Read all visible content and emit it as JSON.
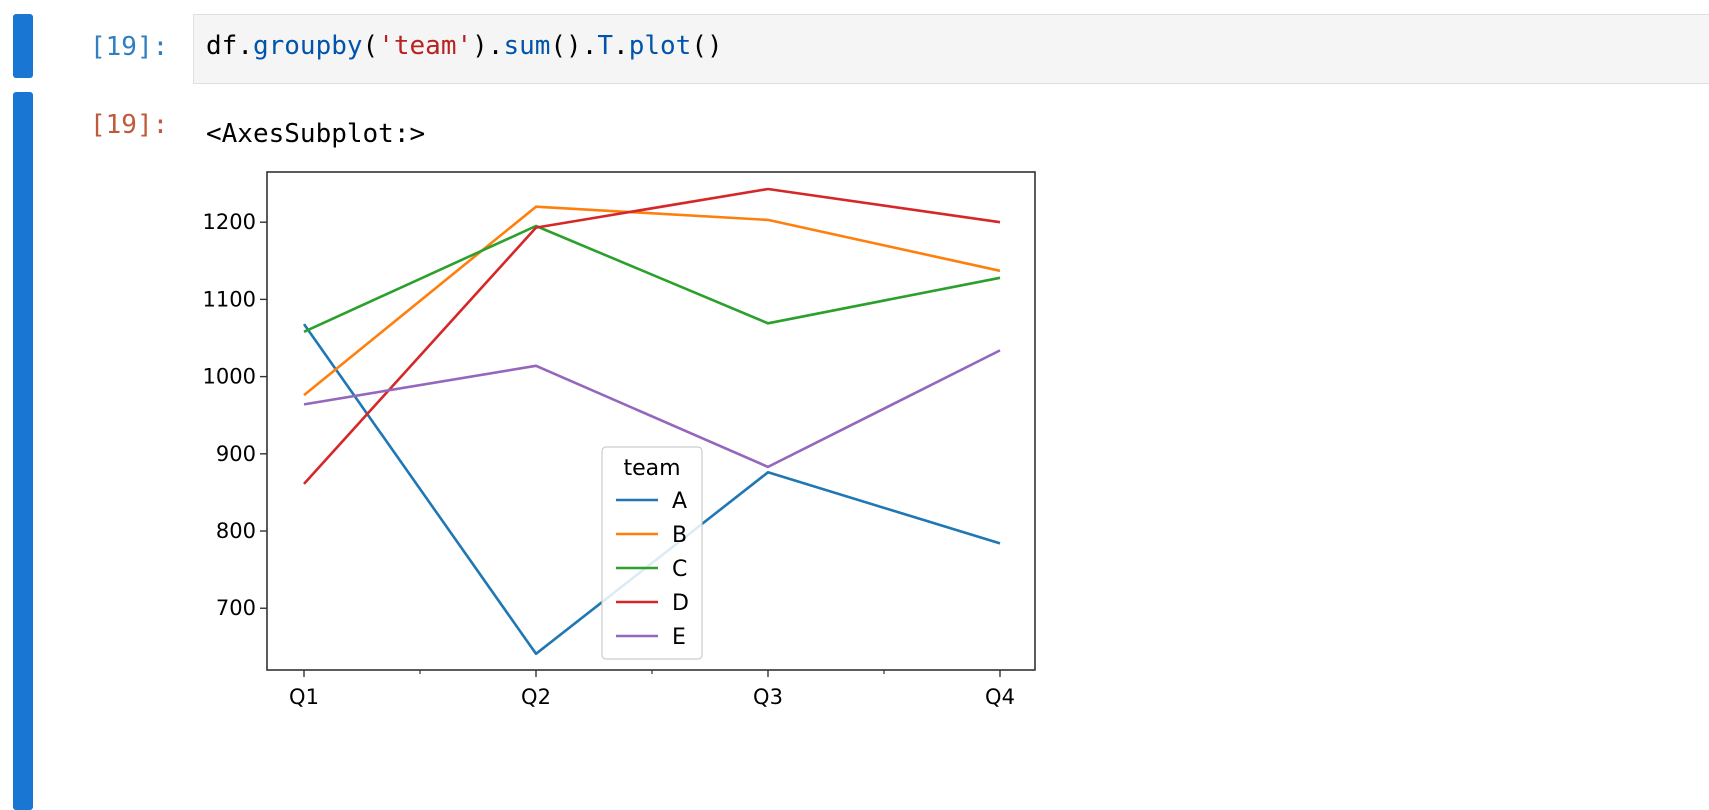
{
  "cell_in": {
    "prompt": "[19]:",
    "code": {
      "df": "df",
      "dot1": ".",
      "groupby": "groupby",
      "paren_open": "(",
      "team_str": "'team'",
      "paren_close_dot": ").",
      "sum": "sum",
      "sum_call_dot": "().",
      "T": "T",
      "dot2": ".",
      "plot": "plot",
      "plot_call": "()"
    }
  },
  "cell_out": {
    "prompt": "[19]:",
    "repr": "<AxesSubplot:>"
  },
  "chart_data": {
    "type": "line",
    "categories": [
      "Q1",
      "Q2",
      "Q3",
      "Q4"
    ],
    "ylim": [
      620,
      1265
    ],
    "yticks": [
      700,
      800,
      900,
      1000,
      1100,
      1200
    ],
    "legend_title": "team",
    "legend_position": "lower center",
    "grid": false,
    "series": [
      {
        "name": "A",
        "color": "#1f77b4",
        "values": [
          1068,
          641,
          876,
          784
        ]
      },
      {
        "name": "B",
        "color": "#ff7f0e",
        "values": [
          976,
          1220,
          1203,
          1137
        ]
      },
      {
        "name": "C",
        "color": "#2ca02c",
        "values": [
          1058,
          1195,
          1069,
          1128
        ]
      },
      {
        "name": "D",
        "color": "#d62728",
        "values": [
          861,
          1193,
          1243,
          1200
        ]
      },
      {
        "name": "E",
        "color": "#9467bd",
        "values": [
          964,
          1014,
          883,
          1034
        ]
      }
    ]
  }
}
